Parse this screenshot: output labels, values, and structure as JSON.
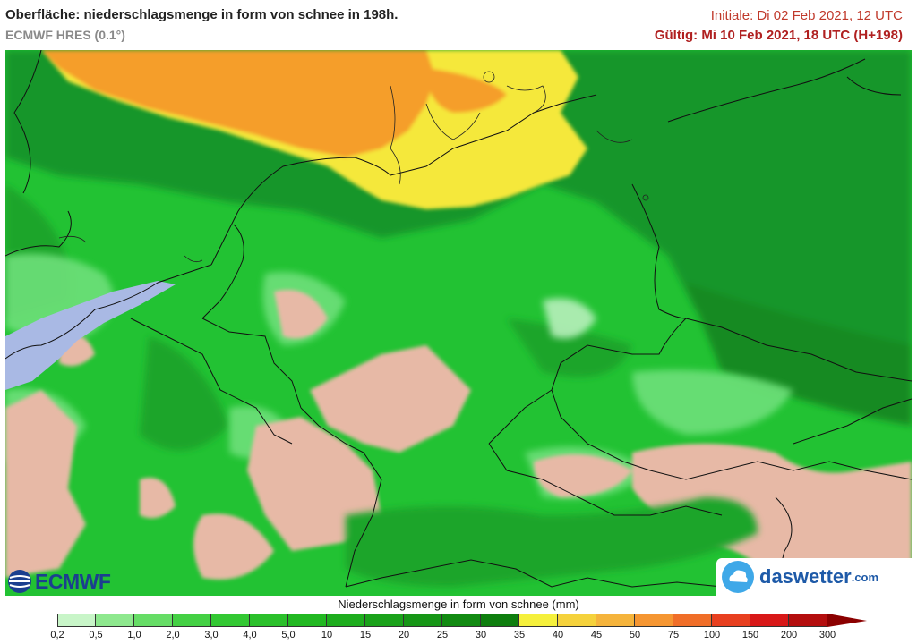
{
  "header": {
    "title": "Oberfläche: niederschlagsmenge in form von schnee in 198h.",
    "model": "ECMWF HRES (0.1°)",
    "initial": "Initiale: Di 02 Feb 2021, 12 UTC",
    "valid": "Gültig: Mi 10 Feb 2021, 18 UTC (H+198)"
  },
  "logos": {
    "left": "ECMWF",
    "right_name": "daswetter",
    "right_domain": ".com"
  },
  "legend": {
    "title": "Niederschlagsmenge in form von schnee (mm)",
    "labels": [
      "0,2",
      "0,5",
      "1,0",
      "2,0",
      "3,0",
      "4,0",
      "5,0",
      "10",
      "15",
      "20",
      "25",
      "30",
      "35",
      "40",
      "45",
      "50",
      "75",
      "100",
      "150",
      "200",
      "300"
    ],
    "colors": [
      "#c8f5c8",
      "#8ee88e",
      "#66dd66",
      "#44d044",
      "#33c833",
      "#2bc02b",
      "#22b822",
      "#1ead1e",
      "#1aa21a",
      "#169616",
      "#128a12",
      "#0e7e0e",
      "#f5f03c",
      "#f5d23c",
      "#f5b43c",
      "#f59632",
      "#f06e28",
      "#e84020",
      "#d81818",
      "#b40e0e",
      "#8b0000"
    ]
  },
  "map_colors": {
    "base_green": "#22c233",
    "dark_green": "#17962a",
    "light_green": "#6ee07a",
    "pale_green": "#b8f0bc",
    "no_snow": "#e7b9a6",
    "orange": "#f59e2c",
    "yellow": "#f5e83a",
    "sea": "#a9b9e4"
  }
}
